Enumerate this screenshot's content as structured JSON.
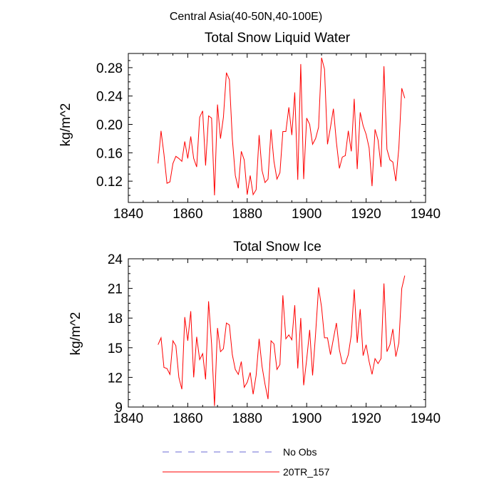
{
  "figure_title": "Central Asia(40-50N,40-100E)",
  "legend": [
    {
      "label": "No Obs",
      "style": "dashed",
      "color": "#6b6bd6"
    },
    {
      "label": "20TR_157",
      "style": "solid",
      "color": "#ff0000"
    }
  ],
  "chart_data": [
    {
      "type": "line",
      "title": "Total Snow Liquid Water",
      "xlabel": "",
      "ylabel": "kg/m^2",
      "xlim": [
        1840,
        1940
      ],
      "ylim": [
        0.09,
        0.3
      ],
      "xticks": [
        1840,
        1860,
        1880,
        1900,
        1920,
        1940
      ],
      "yticks": [
        0.12,
        0.16,
        0.2,
        0.24,
        0.28
      ],
      "ytick_labels": [
        "0.12",
        "0.16",
        "0.20",
        "0.24",
        "0.28"
      ],
      "grid": false,
      "series": [
        {
          "name": "20TR_157",
          "color": "#ff0000",
          "x": [
            1850,
            1851,
            1852,
            1853,
            1854,
            1855,
            1856,
            1857,
            1858,
            1859,
            1860,
            1861,
            1862,
            1863,
            1864,
            1865,
            1866,
            1867,
            1868,
            1869,
            1870,
            1871,
            1872,
            1873,
            1874,
            1875,
            1876,
            1877,
            1878,
            1879,
            1880,
            1881,
            1882,
            1883,
            1884,
            1885,
            1886,
            1887,
            1888,
            1889,
            1890,
            1891,
            1892,
            1893,
            1894,
            1895,
            1896,
            1897,
            1898,
            1899,
            1900,
            1901,
            1902,
            1903,
            1904,
            1905,
            1906,
            1907,
            1908,
            1909,
            1910,
            1911,
            1912,
            1913,
            1914,
            1915,
            1916,
            1917,
            1918,
            1919,
            1920,
            1921,
            1922,
            1923,
            1924,
            1925,
            1926,
            1927,
            1928,
            1929,
            1930,
            1931,
            1932,
            1933
          ],
          "values": [
            0.145,
            0.191,
            0.158,
            0.117,
            0.119,
            0.145,
            0.155,
            0.152,
            0.148,
            0.176,
            0.152,
            0.183,
            0.152,
            0.14,
            0.21,
            0.219,
            0.142,
            0.212,
            0.209,
            0.1,
            0.228,
            0.18,
            0.21,
            0.273,
            0.263,
            0.18,
            0.128,
            0.11,
            0.162,
            0.15,
            0.101,
            0.128,
            0.101,
            0.108,
            0.185,
            0.135,
            0.118,
            0.123,
            0.193,
            0.148,
            0.123,
            0.132,
            0.19,
            0.19,
            0.224,
            0.185,
            0.245,
            0.122,
            0.285,
            0.123,
            0.209,
            0.2,
            0.172,
            0.18,
            0.196,
            0.294,
            0.278,
            0.172,
            0.196,
            0.222,
            0.175,
            0.138,
            0.154,
            0.156,
            0.191,
            0.162,
            0.236,
            0.137,
            0.217,
            0.198,
            0.186,
            0.167,
            0.113,
            0.193,
            0.178,
            0.14,
            0.282,
            0.165,
            0.15,
            0.147,
            0.12,
            0.167,
            0.251,
            0.237
          ]
        }
      ]
    },
    {
      "type": "line",
      "title": "Total Snow Ice",
      "xlabel": "",
      "ylabel": "kg/m^2",
      "xlim": [
        1840,
        1940
      ],
      "ylim": [
        9,
        24
      ],
      "xticks": [
        1840,
        1860,
        1880,
        1900,
        1920,
        1940
      ],
      "yticks": [
        9,
        12,
        15,
        18,
        21,
        24
      ],
      "ytick_labels": [
        "9",
        "12",
        "15",
        "18",
        "21",
        "24"
      ],
      "grid": false,
      "series": [
        {
          "name": "20TR_157",
          "color": "#ff0000",
          "x": [
            1850,
            1851,
            1852,
            1853,
            1854,
            1855,
            1856,
            1857,
            1858,
            1859,
            1860,
            1861,
            1862,
            1863,
            1864,
            1865,
            1866,
            1867,
            1868,
            1869,
            1870,
            1871,
            1872,
            1873,
            1874,
            1875,
            1876,
            1877,
            1878,
            1879,
            1880,
            1881,
            1882,
            1883,
            1884,
            1885,
            1886,
            1887,
            1888,
            1889,
            1890,
            1891,
            1892,
            1893,
            1894,
            1895,
            1896,
            1897,
            1898,
            1899,
            1900,
            1901,
            1902,
            1903,
            1904,
            1905,
            1906,
            1907,
            1908,
            1909,
            1910,
            1911,
            1912,
            1913,
            1914,
            1915,
            1916,
            1917,
            1918,
            1919,
            1920,
            1921,
            1922,
            1923,
            1924,
            1925,
            1926,
            1927,
            1928,
            1929,
            1930,
            1931,
            1932,
            1933
          ],
          "values": [
            15.3,
            16.0,
            13.0,
            12.9,
            12.3,
            15.7,
            15.2,
            12.0,
            10.8,
            18.1,
            15.7,
            18.7,
            12.0,
            16.1,
            13.8,
            14.4,
            11.8,
            19.7,
            15.4,
            9.1,
            17.0,
            14.6,
            14.9,
            17.5,
            17.3,
            14.3,
            12.8,
            12.3,
            13.6,
            11.0,
            11.5,
            12.5,
            10.3,
            12.2,
            15.9,
            13.1,
            11.3,
            9.8,
            15.7,
            15.4,
            12.8,
            13.3,
            20.3,
            15.9,
            16.3,
            15.8,
            19.3,
            12.9,
            18.0,
            11.2,
            13.8,
            16.8,
            12.2,
            16.4,
            21.1,
            19.1,
            16.0,
            16.0,
            14.3,
            15.9,
            17.5,
            14.8,
            13.4,
            13.4,
            14.3,
            16.3,
            20.9,
            15.5,
            18.9,
            14.2,
            15.3,
            13.6,
            12.3,
            13.9,
            13.4,
            13.9,
            21.5,
            14.6,
            15.3,
            16.9,
            14.1,
            15.5,
            21.0,
            22.3
          ]
        }
      ]
    }
  ]
}
